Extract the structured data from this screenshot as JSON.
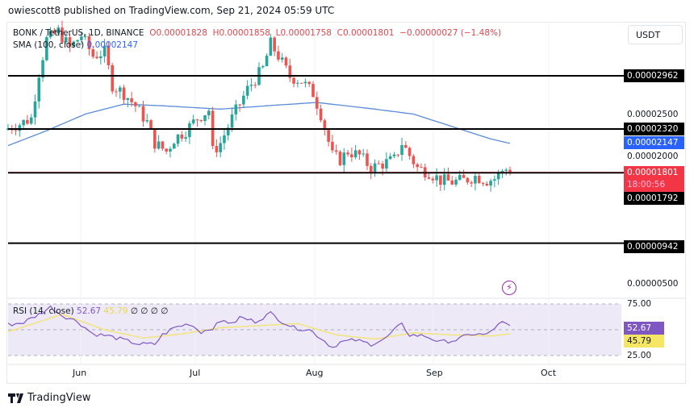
{
  "header": {
    "published": "owiescott8 published on TradingView.com, Sep 21, 2024 05:59 UTC"
  },
  "legend": {
    "symbol": "BONK / TetherUS, 1D, BINANCE",
    "open": "O0.00001828",
    "high": "H0.00001858",
    "low": "L0.00001758",
    "close": "C0.00001801",
    "change": "−0.00000027 (−1.48%)"
  },
  "sma": {
    "label": "SMA (100, close)",
    "value": "0.00002147"
  },
  "rsi": {
    "label": "RSI (14, close)",
    "value": "52.67",
    "ma": "45.79",
    "extra": "∅ ∅ ∅ ∅"
  },
  "currency_button": "USDT",
  "price_axis": {
    "levels": [
      "0.00002962",
      "0.00002320",
      "0.00001792",
      "0.00000942"
    ],
    "ticks": [
      "0.00002500",
      "0.00002000",
      "0.00000500"
    ],
    "sma_label": "0.00002147",
    "last_price": "0.00001801",
    "countdown": "18:00:56",
    "rsi_ticks": [
      "75.00",
      "25.00"
    ],
    "rsi_value": "52.67",
    "rsi_ma": "45.79"
  },
  "time_axis": [
    "Jun",
    "Jul",
    "Aug",
    "Sep",
    "Oct"
  ],
  "branding": "TradingView",
  "colors": {
    "up": "#26a69a",
    "down": "#ef5350",
    "sma": "#5b8bd6",
    "rsi": "#7e57c2",
    "rsi_ma": "#f2e47a",
    "last": "#f23645",
    "sma_tag": "#2962ff"
  },
  "chart_data": {
    "type": "candlestick",
    "unit": "1e-8 USDT",
    "start": "2024-05-13",
    "days": 131,
    "close_keyframes": [
      [
        0,
        2330
      ],
      [
        3,
        2380
      ],
      [
        6,
        2450
      ],
      [
        8,
        3000
      ],
      [
        10,
        3400
      ],
      [
        13,
        3500
      ],
      [
        16,
        3300
      ],
      [
        19,
        3450
      ],
      [
        22,
        3200
      ],
      [
        25,
        3250
      ],
      [
        27,
        2850
      ],
      [
        30,
        2750
      ],
      [
        33,
        2600
      ],
      [
        36,
        2400
      ],
      [
        38,
        2150
      ],
      [
        41,
        2050
      ],
      [
        43,
        2200
      ],
      [
        46,
        2300
      ],
      [
        49,
        2450
      ],
      [
        52,
        2550
      ],
      [
        53,
        2050
      ],
      [
        55,
        2150
      ],
      [
        58,
        2450
      ],
      [
        62,
        2800
      ],
      [
        66,
        3050
      ],
      [
        68,
        3350
      ],
      [
        70,
        3200
      ],
      [
        73,
        2950
      ],
      [
        76,
        2900
      ],
      [
        79,
        2750
      ],
      [
        81,
        2500
      ],
      [
        84,
        2000
      ],
      [
        86,
        1950
      ],
      [
        88,
        2050
      ],
      [
        91,
        2000
      ],
      [
        94,
        1850
      ],
      [
        97,
        1900
      ],
      [
        100,
        1950
      ],
      [
        102,
        2150
      ],
      [
        104,
        2000
      ],
      [
        106,
        1850
      ],
      [
        109,
        1800
      ],
      [
        112,
        1700
      ],
      [
        115,
        1680
      ],
      [
        118,
        1700
      ],
      [
        121,
        1750
      ],
      [
        124,
        1700
      ],
      [
        126,
        1720
      ],
      [
        128,
        1820
      ],
      [
        129,
        1828
      ],
      [
        130,
        1801
      ]
    ],
    "sma_keyframes": [
      [
        0,
        2120
      ],
      [
        10,
        2300
      ],
      [
        20,
        2500
      ],
      [
        30,
        2620
      ],
      [
        40,
        2600
      ],
      [
        55,
        2560
      ],
      [
        70,
        2610
      ],
      [
        80,
        2640
      ],
      [
        95,
        2560
      ],
      [
        105,
        2500
      ],
      [
        115,
        2350
      ],
      [
        125,
        2200
      ],
      [
        130,
        2147
      ]
    ],
    "rsi_keyframes": [
      [
        0,
        55
      ],
      [
        4,
        57
      ],
      [
        8,
        65
      ],
      [
        11,
        72
      ],
      [
        14,
        64
      ],
      [
        18,
        58
      ],
      [
        22,
        46
      ],
      [
        26,
        44
      ],
      [
        30,
        40
      ],
      [
        34,
        36
      ],
      [
        38,
        36
      ],
      [
        40,
        45
      ],
      [
        43,
        52
      ],
      [
        47,
        56
      ],
      [
        50,
        48
      ],
      [
        53,
        52
      ],
      [
        56,
        60
      ],
      [
        58,
        55
      ],
      [
        60,
        62
      ],
      [
        64,
        58
      ],
      [
        68,
        66
      ],
      [
        71,
        58
      ],
      [
        74,
        52
      ],
      [
        78,
        50
      ],
      [
        81,
        42
      ],
      [
        84,
        33
      ],
      [
        86,
        38
      ],
      [
        90,
        40
      ],
      [
        94,
        36
      ],
      [
        98,
        42
      ],
      [
        100,
        50
      ],
      [
        102,
        55
      ],
      [
        104,
        45
      ],
      [
        108,
        44
      ],
      [
        112,
        38
      ],
      [
        116,
        40
      ],
      [
        120,
        46
      ],
      [
        124,
        45
      ],
      [
        126,
        52
      ],
      [
        128,
        57
      ],
      [
        130,
        53
      ]
    ],
    "rsi_ma_keyframes": [
      [
        0,
        48
      ],
      [
        10,
        60
      ],
      [
        14,
        65
      ],
      [
        25,
        50
      ],
      [
        35,
        42
      ],
      [
        45,
        46
      ],
      [
        55,
        52
      ],
      [
        65,
        54
      ],
      [
        75,
        56
      ],
      [
        85,
        45
      ],
      [
        95,
        41
      ],
      [
        105,
        47
      ],
      [
        115,
        45
      ],
      [
        125,
        44
      ],
      [
        130,
        46
      ]
    ],
    "horizontal_levels": [
      2962,
      2320,
      1792,
      942
    ],
    "price_range": [
      400,
      3700
    ],
    "rsi_range": [
      0,
      100
    ]
  }
}
